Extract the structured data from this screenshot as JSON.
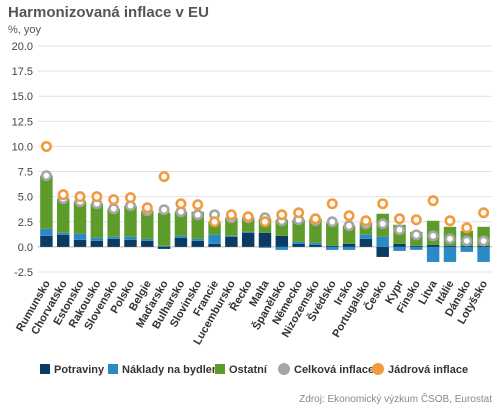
{
  "chart_data": {
    "type": "bar",
    "title": "Harmonizovaná inflace v EU",
    "ylabel": "%, yoy",
    "ylim": [
      -2.5,
      20
    ],
    "yticks": [
      -2.5,
      0.0,
      2.5,
      5.0,
      7.5,
      10.0,
      12.5,
      15.0,
      17.5,
      20.0
    ],
    "grid": true,
    "legend_position": "bottom",
    "categories": [
      "Rumunsko",
      "Chorvatsko",
      "Estonsko",
      "Rakousko",
      "Slovensko",
      "Polsko",
      "Belgie",
      "Maďarsko",
      "Bulharsko",
      "Slovinsko",
      "Francie",
      "Lucembursko",
      "Řecko",
      "Malta",
      "Španělsko",
      "Německo",
      "Nizozemsko",
      "Švédsko",
      "Irsko",
      "Portugalsko",
      "Česko",
      "Kypr",
      "Finsko",
      "Litva",
      "Itálie",
      "Dánsko",
      "Lotyšsko"
    ],
    "series": [
      {
        "name": "Potraviny",
        "kind": "bar",
        "color": "#0b3a63",
        "values": [
          1.1,
          1.2,
          0.7,
          0.6,
          0.8,
          0.7,
          0.6,
          -0.2,
          0.9,
          0.6,
          0.3,
          1.0,
          1.4,
          1.4,
          1.1,
          0.3,
          0.2,
          0.1,
          0.3,
          0.8,
          -1.0,
          0.3,
          0.1,
          0.2,
          0.1,
          0.1,
          0.1
        ]
      },
      {
        "name": "Náklady na bydlení",
        "kind": "bar",
        "color": "#2b8ac6",
        "values": [
          0.7,
          0.2,
          0.6,
          0.3,
          0.2,
          0.3,
          0.2,
          0.1,
          0.2,
          0.2,
          0.9,
          0.1,
          0.1,
          -0.1,
          -0.3,
          0.2,
          0.2,
          -0.3,
          -0.3,
          0.4,
          1.0,
          -0.4,
          -0.3,
          -1.5,
          -1.5,
          -0.5,
          -1.5
        ]
      },
      {
        "name": "Ostatní",
        "kind": "bar",
        "color": "#5d9c2a",
        "values": [
          5.3,
          3.4,
          3.2,
          3.4,
          2.8,
          3.1,
          2.8,
          3.3,
          2.4,
          2.7,
          1.3,
          1.8,
          1.4,
          1.4,
          1.6,
          2.2,
          2.4,
          2.3,
          1.8,
          1.2,
          2.3,
          1.9,
          1.4,
          2.4,
          1.9,
          1.5,
          1.9
        ]
      },
      {
        "name": "Celková inflace",
        "kind": "marker",
        "color": "#a6a6a6",
        "values": [
          7.1,
          4.8,
          4.5,
          4.3,
          3.8,
          4.1,
          3.6,
          3.7,
          3.5,
          3.2,
          3.2,
          2.9,
          2.9,
          2.9,
          2.6,
          2.7,
          2.6,
          2.5,
          2.1,
          2.3,
          2.3,
          1.7,
          1.2,
          1.1,
          0.8,
          0.6,
          0.6
        ]
      },
      {
        "name": "Jádrová inflace",
        "kind": "marker",
        "color": "#f29b3e",
        "values": [
          10.0,
          5.2,
          5.0,
          5.0,
          4.7,
          4.9,
          3.9,
          7.0,
          4.3,
          4.2,
          2.5,
          3.2,
          3.0,
          2.5,
          3.2,
          3.4,
          2.8,
          4.3,
          3.1,
          2.6,
          4.3,
          2.8,
          2.7,
          4.6,
          2.6,
          1.9,
          3.4
        ]
      }
    ]
  },
  "source": "Zdroj: Ekonomický výzkum ČSOB, Eurostat"
}
